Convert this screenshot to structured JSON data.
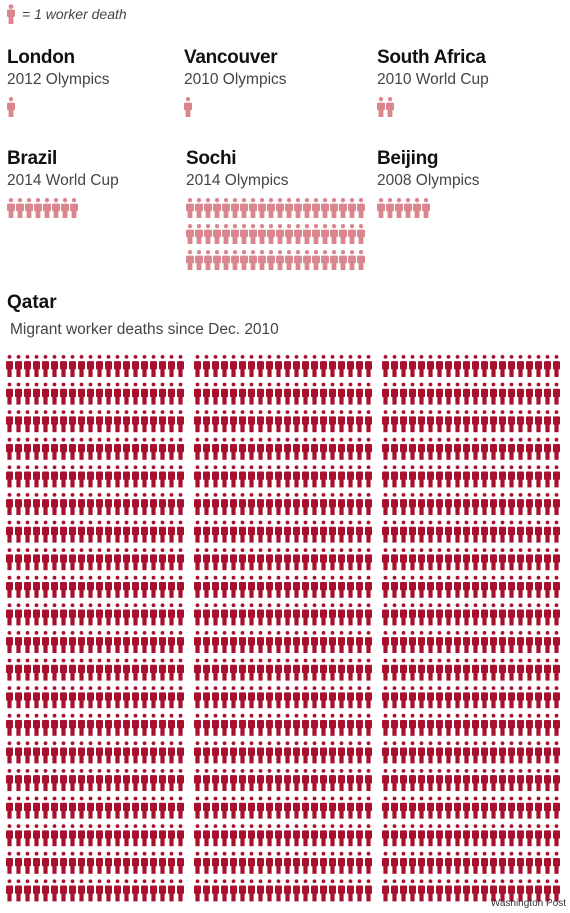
{
  "legend": {
    "label": "= 1 worker death"
  },
  "colors": {
    "icon_light": "#d9868f",
    "icon_dark": "#a8102e"
  },
  "icon_name": "person-icon",
  "chart_data": {
    "type": "pictogram",
    "unit": "1 worker death",
    "events": [
      {
        "name": "London",
        "event": "2012 Olympics",
        "deaths": 1
      },
      {
        "name": "Vancouver",
        "event": "2010 Olympics",
        "deaths": 1
      },
      {
        "name": "South Africa",
        "event": "2010 World Cup",
        "deaths": 2
      },
      {
        "name": "Brazil",
        "event": "2014 World Cup",
        "deaths": 8
      },
      {
        "name": "Sochi",
        "event": "2014 Olympics",
        "deaths": 60
      },
      {
        "name": "Beijing",
        "event": "2008 Olympics",
        "deaths": 6
      }
    ],
    "highlight": {
      "name": "Qatar",
      "event": "Migrant worker deaths since Dec. 2010",
      "deaths": 1200
    }
  },
  "credit": "Washington Post"
}
